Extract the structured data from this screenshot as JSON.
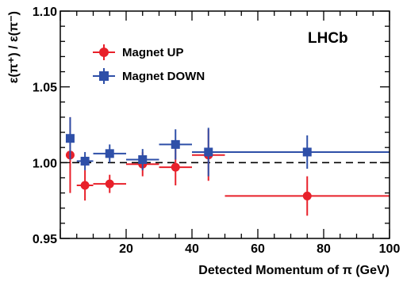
{
  "chart_data": {
    "type": "scatter",
    "annotation": "LHCb",
    "xlabel": "Detected Momentum of π (GeV)",
    "ylabel": "ε(π⁺) / ε(π⁻)",
    "xlim": [
      0,
      100
    ],
    "ylim": [
      0.95,
      1.1
    ],
    "x_major_ticks": [
      20,
      40,
      60,
      80,
      100
    ],
    "x_minor_step": 5,
    "y_major_ticks": [
      0.95,
      1.0,
      1.05,
      1.1
    ],
    "y_tick_labels": [
      "0.95",
      "1.00",
      "1.05",
      "1.10"
    ],
    "y_minor_step": 0.01,
    "reference_line": {
      "y": 1.0,
      "style": "dashed",
      "color": "#000000"
    },
    "legend_position": "top-left",
    "grid": false,
    "series": [
      {
        "name": "Magnet UP",
        "marker": "circle",
        "color": "#e8202a",
        "points": [
          {
            "x": 3,
            "y": 1.005,
            "xerr": 1,
            "yerr": 0.025
          },
          {
            "x": 7.5,
            "y": 0.985,
            "xerr": 2.5,
            "yerr": 0.01
          },
          {
            "x": 15,
            "y": 0.986,
            "xerr": 5,
            "yerr": 0.006
          },
          {
            "x": 25,
            "y": 0.999,
            "xerr": 5,
            "yerr": 0.008
          },
          {
            "x": 35,
            "y": 0.997,
            "xerr": 5,
            "yerr": 0.012
          },
          {
            "x": 45,
            "y": 1.005,
            "xerr": 5,
            "yerr": 0.017
          },
          {
            "x": 75,
            "y": 0.978,
            "xerr": 25,
            "yerr": 0.013
          }
        ]
      },
      {
        "name": "Magnet DOWN",
        "marker": "square",
        "color": "#2e4fa8",
        "points": [
          {
            "x": 3,
            "y": 1.016,
            "xerr": 1,
            "yerr": 0.014
          },
          {
            "x": 7.5,
            "y": 1.001,
            "xerr": 2.5,
            "yerr": 0.006
          },
          {
            "x": 15,
            "y": 1.006,
            "xerr": 5,
            "yerr": 0.006
          },
          {
            "x": 25,
            "y": 1.002,
            "xerr": 5,
            "yerr": 0.007
          },
          {
            "x": 35,
            "y": 1.012,
            "xerr": 5,
            "yerr": 0.01
          },
          {
            "x": 45,
            "y": 1.007,
            "xerr": 5,
            "yerr": 0.016
          },
          {
            "x": 75,
            "y": 1.007,
            "xerr": 25,
            "yerr": 0.011
          }
        ]
      }
    ]
  }
}
